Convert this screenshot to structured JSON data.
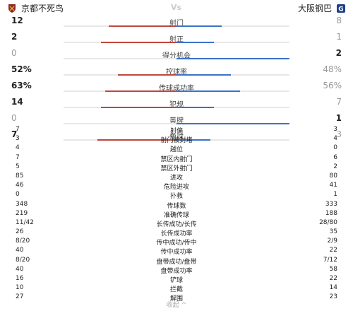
{
  "header": {
    "home_team": "京都不死鸟",
    "away_team": "大阪钢巴",
    "vs_label": "Vs",
    "home_color": "#c0463e",
    "away_color": "#2d5fb3"
  },
  "bar_stats": [
    {
      "label": "射门",
      "home": "12",
      "away": "8",
      "home_frac": 0.6,
      "away_frac": 0.4,
      "home_hl": true,
      "away_hl": false
    },
    {
      "label": "射正",
      "home": "2",
      "away": "1",
      "home_frac": 0.67,
      "away_frac": 0.33,
      "home_hl": true,
      "away_hl": false
    },
    {
      "label": "得分机会",
      "home": "0",
      "away": "2",
      "home_frac": 0.0,
      "away_frac": 1.0,
      "home_hl": false,
      "away_hl": true
    },
    {
      "label": "控球率",
      "home": "52%",
      "away": "48%",
      "home_frac": 0.52,
      "away_frac": 0.48,
      "home_hl": true,
      "away_hl": false
    },
    {
      "label": "传球成功率",
      "home": "63%",
      "away": "56%",
      "home_frac": 0.63,
      "away_frac": 0.56,
      "home_hl": true,
      "away_hl": false
    },
    {
      "label": "犯规",
      "home": "14",
      "away": "7",
      "home_frac": 0.67,
      "away_frac": 0.33,
      "home_hl": true,
      "away_hl": false
    },
    {
      "label": "黄牌",
      "home": "0",
      "away": "1",
      "home_frac": 0.0,
      "away_frac": 1.0,
      "home_hl": false,
      "away_hl": true
    },
    {
      "label": "角球",
      "home": "7",
      "away": "3",
      "home_frac": 0.7,
      "away_frac": 0.3,
      "home_hl": true,
      "away_hl": false
    }
  ],
  "table_stats": [
    {
      "label": "射偏",
      "home": "7",
      "away": "3"
    },
    {
      "label": "射门被封堵",
      "home": "3",
      "away": "4"
    },
    {
      "label": "越位",
      "home": "4",
      "away": "0"
    },
    {
      "label": "禁区内射门",
      "home": "7",
      "away": "6"
    },
    {
      "label": "禁区外射门",
      "home": "5",
      "away": "2"
    },
    {
      "label": "进攻",
      "home": "85",
      "away": "80"
    },
    {
      "label": "危险进攻",
      "home": "46",
      "away": "41"
    },
    {
      "label": "扑救",
      "home": "0",
      "away": "1"
    },
    {
      "label": "传球数",
      "home": "348",
      "away": "333"
    },
    {
      "label": "准确传球",
      "home": "219",
      "away": "188"
    },
    {
      "label": "长传成功/长传",
      "home": "11/42",
      "away": "28/80"
    },
    {
      "label": "长传成功率",
      "home": "26",
      "away": "35"
    },
    {
      "label": "传中成功/传中",
      "home": "8/20",
      "away": "2/9"
    },
    {
      "label": "传中成功率",
      "home": "40",
      "away": "22"
    },
    {
      "label": "盘带成功/盘带",
      "home": "8/20",
      "away": "7/12"
    },
    {
      "label": "盘带成功率",
      "home": "40",
      "away": "58"
    },
    {
      "label": "铲球",
      "home": "16",
      "away": "22"
    },
    {
      "label": "拦截",
      "home": "10",
      "away": "14"
    },
    {
      "label": "解围",
      "home": "27",
      "away": "23"
    }
  ],
  "footer": {
    "collapse_label": "收起 ^"
  }
}
